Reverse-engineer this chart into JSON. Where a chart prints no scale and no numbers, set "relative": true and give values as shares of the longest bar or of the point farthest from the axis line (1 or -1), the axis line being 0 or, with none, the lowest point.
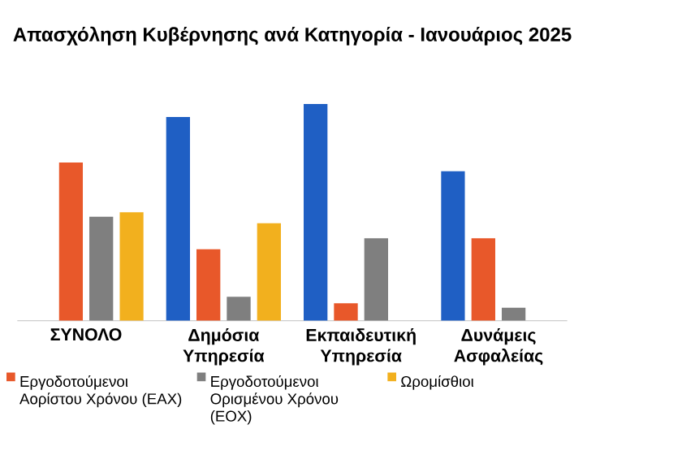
{
  "chart_data": {
    "type": "bar",
    "title": "Απασχόληση Κυβέρνησης ανά Κατηγορία - Ιανουάριος 2025",
    "relative": true,
    "legend": "bottom",
    "categories": [
      "ΣΥΝΟΛΟ",
      "Δημόσια Υπηρεσία",
      "Εκπαιδευτική Υπηρεσία",
      "Δυνάμεις Ασφαλείας"
    ],
    "series": [
      {
        "color": "#1f5fc4",
        "values": [
          null,
          0.94,
          1,
          0.69
        ]
      },
      {
        "name": "Εργοδοτούμενοι Αορίστου Χρόνου (ΕΑΧ)",
        "color": "#e8582a",
        "values": [
          0.73,
          0.33,
          0.08,
          0.38
        ]
      },
      {
        "name": "Εργοδοτούμενοι Ορισμένου Χρόνου (ΕΟΧ)",
        "color": "#7f7f7f",
        "values": [
          0.48,
          0.11,
          0.38,
          0.06
        ]
      },
      {
        "name": "Ωρομίσθιοι",
        "color": "#f2b01e",
        "values": [
          0.5,
          0.45,
          null,
          null
        ]
      }
    ]
  }
}
